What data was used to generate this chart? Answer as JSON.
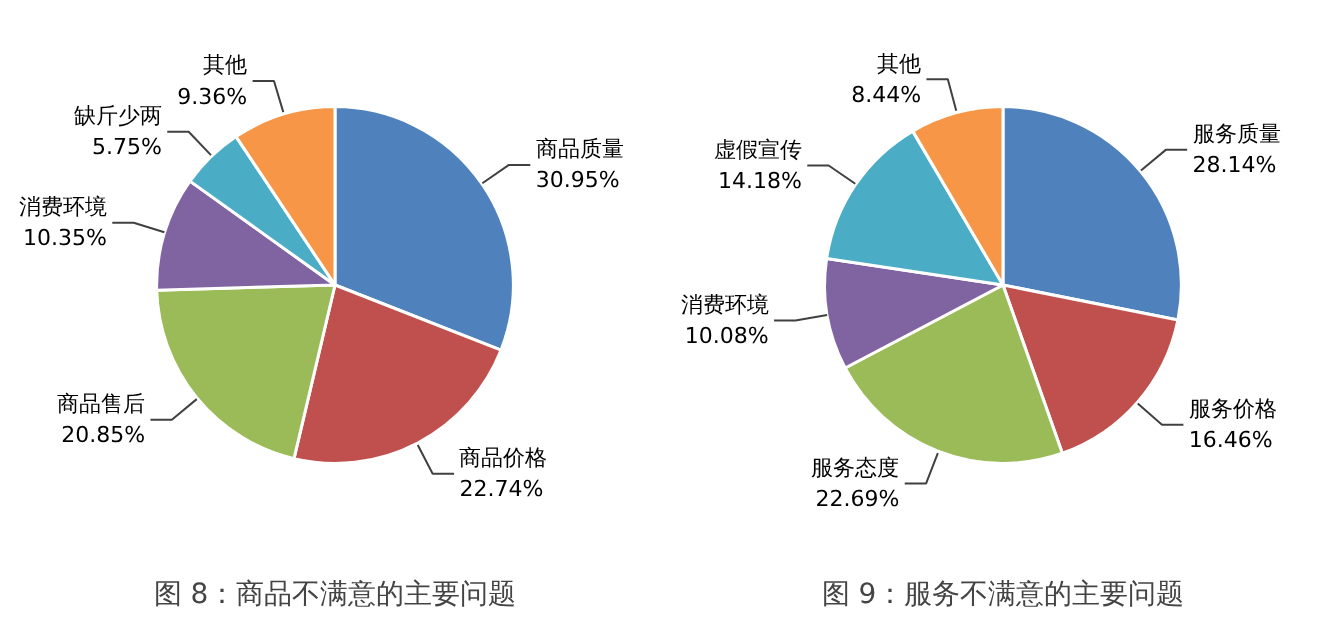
{
  "chart_data": [
    {
      "type": "pie",
      "title": "图 8：商品不满意的主要问题",
      "categories": [
        "商品质量",
        "商品价格",
        "商品售后",
        "消费环境",
        "缺斤少两",
        "其他"
      ],
      "values": [
        30.95,
        22.74,
        20.85,
        10.35,
        5.75,
        9.36
      ],
      "value_labels": [
        "30.95%",
        "22.74%",
        "20.85%",
        "10.35%",
        "5.75%",
        "9.36%"
      ],
      "colors": [
        "#4f81bd",
        "#c0504d",
        "#9bbb59",
        "#8064a2",
        "#4bacc6",
        "#f79646"
      ]
    },
    {
      "type": "pie",
      "title": "图 9：服务不满意的主要问题",
      "categories": [
        "服务质量",
        "服务价格",
        "服务态度",
        "消费环境",
        "虚假宣传",
        "其他"
      ],
      "values": [
        28.14,
        16.46,
        22.69,
        10.08,
        14.18,
        8.44
      ],
      "value_labels": [
        "28.14%",
        "16.46%",
        "22.69%",
        "10.08%",
        "14.18%",
        "8.44%"
      ],
      "colors": [
        "#4f81bd",
        "#c0504d",
        "#9bbb59",
        "#8064a2",
        "#4bacc6",
        "#f79646"
      ]
    }
  ]
}
